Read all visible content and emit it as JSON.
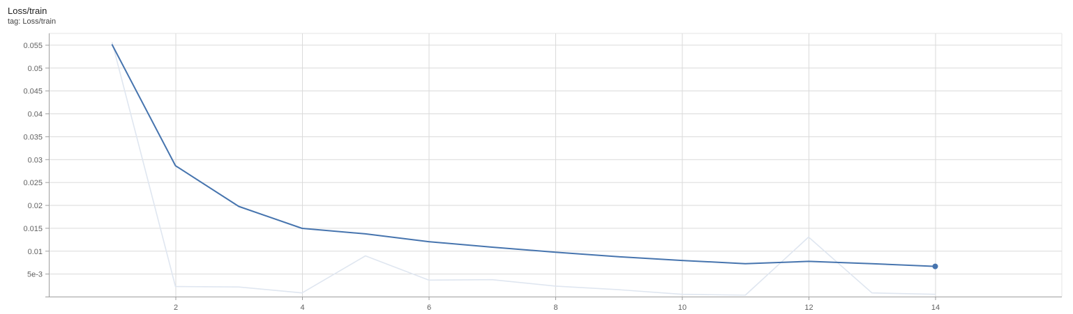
{
  "card": {
    "title": "Loss/train",
    "subtitle": "tag: Loss/train"
  },
  "chart_data": {
    "type": "line",
    "title": "Loss/train",
    "subtitle": "tag: Loss/train",
    "xlabel": "",
    "ylabel": "",
    "xlim": [
      0,
      16
    ],
    "ylim": [
      0,
      0.0575
    ],
    "xticks": [
      2,
      4,
      6,
      8,
      10,
      12,
      14
    ],
    "xtick_labels": [
      "2",
      "4",
      "6",
      "8",
      "10",
      "12",
      "14"
    ],
    "yticks": [
      0.005,
      0.01,
      0.015,
      0.02,
      0.025,
      0.03,
      0.035,
      0.04,
      0.045,
      0.05,
      0.055
    ],
    "ytick_labels": [
      "5e-3",
      "0.01",
      "0.015",
      "0.02",
      "0.025",
      "0.03",
      "0.035",
      "0.04",
      "0.045",
      "0.05",
      "0.055"
    ],
    "grid": true,
    "series": [
      {
        "role": "raw",
        "color": "#dfe6f0",
        "x": [
          1,
          2,
          3,
          4,
          5,
          6,
          7,
          8,
          9,
          10,
          11,
          12,
          13,
          14
        ],
        "values": [
          0.0555,
          0.0022,
          0.0021,
          0.0008,
          0.0089,
          0.0036,
          0.0037,
          0.0023,
          0.0015,
          0.0005,
          0.0003,
          0.013,
          0.0008,
          0.0005
        ]
      },
      {
        "role": "smoothed",
        "color": "#4674ae",
        "x": [
          1,
          2,
          3,
          4,
          5,
          6,
          7,
          8,
          9,
          10,
          11,
          12,
          13,
          14
        ],
        "values": [
          0.055,
          0.0286,
          0.0197,
          0.0149,
          0.0137,
          0.012,
          0.0108,
          0.0097,
          0.0087,
          0.0079,
          0.0072,
          0.0077,
          0.0072,
          0.0066
        ]
      }
    ]
  }
}
